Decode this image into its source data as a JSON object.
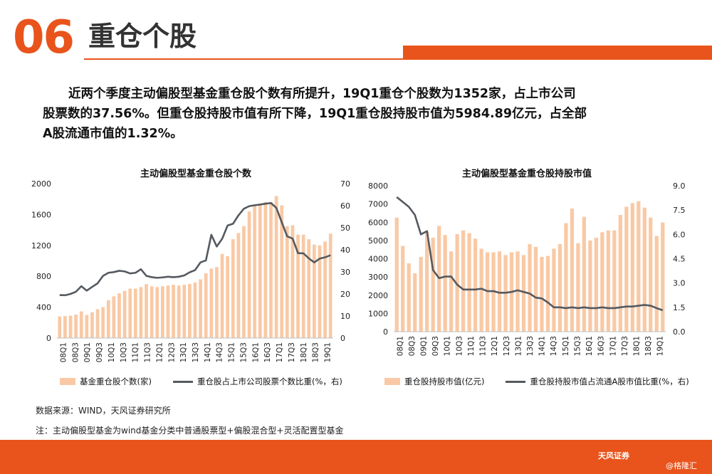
{
  "header": {
    "number": "06",
    "title": "重仓个股"
  },
  "paragraph": {
    "line1": "近两个季度主动偏股型基金重仓股个数有所提升，19Q1重仓个股数为1352家，占上市公司",
    "line2": "股票数的37.56%。但重仓股持股市值有所下降，19Q1重仓股持股市值为5984.89亿元，占全部",
    "line3": "A股流通市值的1.32%。"
  },
  "colors": {
    "accent": "#e8541c",
    "bar": "#f9c9a5",
    "line": "#555a60"
  },
  "chart_data": [
    {
      "type": "bar",
      "title": "主动偏股型基金重仓股个数",
      "x_tick_labels": [
        "08Q1",
        "08Q3",
        "09Q1",
        "09Q3",
        "10Q1",
        "10Q3",
        "11Q1",
        "11Q3",
        "12Q1",
        "12Q3",
        "13Q1",
        "13Q3",
        "14Q1",
        "14Q3",
        "15Q1",
        "15Q3",
        "16Q1",
        "16Q3",
        "17Q1",
        "17Q3",
        "18Q1",
        "18Q3",
        "19Q1"
      ],
      "y_ticks_left": [
        0,
        400,
        800,
        1200,
        1600,
        2000
      ],
      "y_ticks_right": [
        0,
        10,
        20,
        30,
        40,
        50,
        60,
        70
      ],
      "ylim_left": [
        0,
        2000
      ],
      "ylim_right": [
        0,
        70
      ],
      "grid": false,
      "legend_position": "bottom",
      "series": [
        {
          "name": "基金重仓股个数(家)",
          "type": "bar",
          "axis": "left",
          "values": [
            280,
            285,
            290,
            305,
            345,
            300,
            335,
            375,
            400,
            490,
            540,
            580,
            610,
            640,
            640,
            660,
            700,
            670,
            660,
            670,
            680,
            690,
            680,
            690,
            700,
            720,
            760,
            840,
            900,
            920,
            1090,
            1060,
            1280,
            1360,
            1450,
            1640,
            1720,
            1740,
            1760,
            1760,
            1840,
            1720,
            1450,
            1460,
            1340,
            1340,
            1280,
            1210,
            1200,
            1250,
            1352
          ]
        },
        {
          "name": "重仓股占上市公司股票个数比重(%，右)",
          "type": "line",
          "axis": "right",
          "values": [
            19.5,
            19.4,
            20.0,
            21.0,
            23.5,
            21.5,
            23.2,
            24.8,
            28.2,
            29.6,
            29.9,
            30.5,
            30.2,
            29.3,
            29.6,
            31.2,
            28.2,
            27.6,
            27.3,
            27.5,
            27.8,
            27.6,
            27.8,
            28.4,
            29.8,
            30.8,
            34.3,
            35.2,
            46.8,
            41.5,
            45.0,
            51.0,
            51.8,
            55.6,
            58.6,
            59.8,
            60.2,
            60.5,
            60.9,
            61.2,
            59.0,
            52.5,
            46.1,
            45.1,
            38.5,
            38.4,
            36.1,
            34.3,
            36.0,
            36.6,
            37.56
          ]
        }
      ]
    },
    {
      "type": "bar",
      "title": "主动偏股型基金重仓股持股市值",
      "x_tick_labels": [
        "08Q1",
        "08Q3",
        "09Q1",
        "09Q3",
        "10Q1",
        "10Q3",
        "11Q1",
        "11Q3",
        "12Q1",
        "12Q3",
        "13Q1",
        "13Q3",
        "14Q1",
        "14Q3",
        "15Q1",
        "15Q3",
        "16Q1",
        "16Q3",
        "17Q1",
        "17Q3",
        "18Q1",
        "18Q3",
        "19Q1"
      ],
      "y_ticks_left": [
        0,
        1000,
        2000,
        3000,
        4000,
        5000,
        6000,
        7000,
        8000
      ],
      "y_ticks_right": [
        "0.0",
        "1.5",
        "3.0",
        "4.5",
        "6.0",
        "7.5",
        "9.0"
      ],
      "ylim_left": [
        0,
        8000
      ],
      "ylim_right": [
        0,
        9
      ],
      "grid": false,
      "legend_position": "bottom",
      "series": [
        {
          "name": "重仓股持股市值(亿元)",
          "type": "bar",
          "axis": "left",
          "values": [
            6250,
            4700,
            3750,
            3200,
            4100,
            5500,
            5150,
            5800,
            5300,
            4400,
            5350,
            5550,
            5400,
            5100,
            4550,
            4350,
            4350,
            4400,
            4200,
            4350,
            4400,
            4200,
            4800,
            4650,
            4100,
            4150,
            4550,
            4800,
            5950,
            6750,
            4850,
            6300,
            5000,
            5150,
            5450,
            5550,
            5550,
            6400,
            6850,
            7050,
            7150,
            6800,
            6250,
            5250,
            5985
          ]
        },
        {
          "name": "重仓股持股市值占流通A股市值比重(%，右)",
          "type": "line",
          "axis": "right",
          "values": [
            8.3,
            8.0,
            7.7,
            7.2,
            6.0,
            6.2,
            3.8,
            3.3,
            3.4,
            3.4,
            2.9,
            2.6,
            2.6,
            2.6,
            2.65,
            2.5,
            2.5,
            2.4,
            2.4,
            2.45,
            2.55,
            2.45,
            2.35,
            2.1,
            2.05,
            1.8,
            1.5,
            1.5,
            1.45,
            1.5,
            1.45,
            1.5,
            1.45,
            1.45,
            1.5,
            1.45,
            1.45,
            1.5,
            1.55,
            1.55,
            1.6,
            1.65,
            1.6,
            1.45,
            1.32
          ]
        }
      ]
    }
  ],
  "source": "数据来源：WIND，天风证券研究所",
  "note": "注：主动偏股型基金为wind基金分类中普通股票型+偏股混合型+灵活配置型基金",
  "footer": {
    "brand": "天风证券",
    "watermark": "@格隆汇"
  }
}
